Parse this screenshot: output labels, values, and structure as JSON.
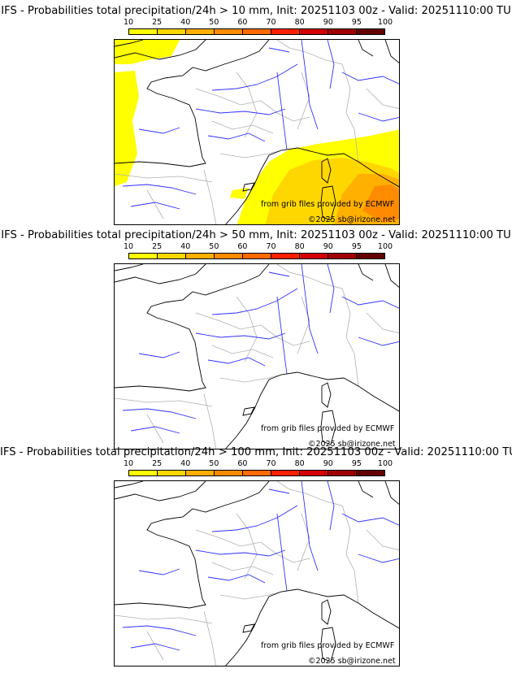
{
  "colorbar": {
    "levels": [
      "10",
      "25",
      "40",
      "50",
      "60",
      "70",
      "80",
      "90",
      "95",
      "100"
    ],
    "colors": [
      "#ffff00",
      "#ffd700",
      "#ffb000",
      "#ff8c00",
      "#ff6a00",
      "#ff2000",
      "#d40000",
      "#a00000",
      "#640000"
    ]
  },
  "panels": [
    {
      "title": "IFS - Probabilities total precipitation/24h > 10 mm, Init: 20251103 00z - Valid: 20251110:00 TU",
      "source": "from grib files provided by ECMWF",
      "copyright": "©2025 sb@irizone.net",
      "has_precip": true
    },
    {
      "title": "IFS - Probabilities total precipitation/24h > 50 mm, Init: 20251103 00z - Valid: 20251110:00 TU",
      "source": "from grib files provided by ECMWF",
      "copyright": "©2025 sb@irizone.net",
      "has_precip": false
    },
    {
      "title": "IFS - Probabilities total precipitation/24h > 100 mm, Init: 20251103 00z - Valid: 20251110:00 TU",
      "source": "from grib files provided by ECMWF",
      "copyright": "©2025 sb@irizone.net",
      "has_precip": false
    }
  ]
}
